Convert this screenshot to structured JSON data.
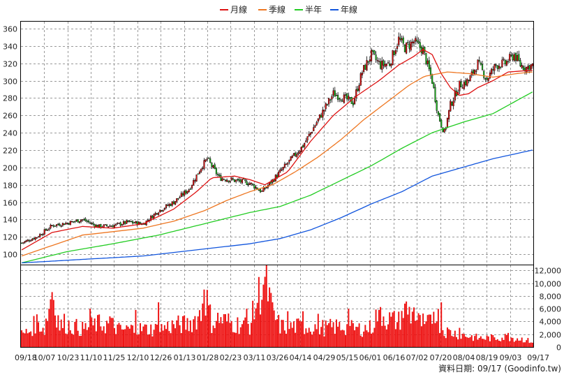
{
  "chart_data": [
    {
      "type": "candlestick",
      "legend": [
        {
          "name": "月線",
          "color": "#dd1111"
        },
        {
          "name": "季線",
          "color": "#ee7722"
        },
        {
          "name": "半年",
          "color": "#22cc22"
        },
        {
          "name": "年線",
          "color": "#1155dd"
        }
      ],
      "legend_placement": "top-center",
      "x_tick_labels": [
        "09/18",
        "10/07",
        "10/23",
        "11/10",
        "11/25",
        "12/10",
        "12/26",
        "01/13",
        "01/28",
        "02/23",
        "03/11",
        "03/26",
        "04/14",
        "04/29",
        "05/15",
        "06/01",
        "06/16",
        "07/02",
        "07/20",
        "08/04",
        "08/19",
        "09/03",
        "09/17"
      ],
      "y_ticks": [
        100,
        120,
        140,
        160,
        180,
        200,
        220,
        240,
        260,
        280,
        300,
        320,
        340,
        360
      ],
      "ylim": [
        88,
        368
      ],
      "grid": true,
      "up_color": "#dd1111",
      "down_color": "#22bb22",
      "price_knots": [
        [
          0,
          113
        ],
        [
          10,
          120
        ],
        [
          20,
          133
        ],
        [
          30,
          136
        ],
        [
          40,
          140
        ],
        [
          50,
          132
        ],
        [
          60,
          133
        ],
        [
          70,
          137
        ],
        [
          80,
          135
        ],
        [
          90,
          150
        ],
        [
          100,
          160
        ],
        [
          110,
          175
        ],
        [
          118,
          200
        ],
        [
          122,
          210
        ],
        [
          130,
          188
        ],
        [
          140,
          185
        ],
        [
          150,
          182
        ],
        [
          158,
          172
        ],
        [
          165,
          185
        ],
        [
          175,
          205
        ],
        [
          185,
          225
        ],
        [
          195,
          255
        ],
        [
          205,
          285
        ],
        [
          212,
          280
        ],
        [
          218,
          275
        ],
        [
          224,
          310
        ],
        [
          230,
          330
        ],
        [
          236,
          318
        ],
        [
          242,
          320
        ],
        [
          248,
          348
        ],
        [
          252,
          338
        ],
        [
          258,
          345
        ],
        [
          264,
          335
        ],
        [
          270,
          300
        ],
        [
          274,
          260
        ],
        [
          278,
          240
        ],
        [
          282,
          272
        ],
        [
          288,
          295
        ],
        [
          294,
          300
        ],
        [
          300,
          320
        ],
        [
          306,
          302
        ],
        [
          312,
          318
        ],
        [
          318,
          320
        ],
        [
          324,
          330
        ],
        [
          328,
          318
        ],
        [
          332,
          315
        ],
        [
          336,
          318
        ]
      ],
      "series": [
        {
          "name": "月線",
          "knots": [
            [
              0,
              105
            ],
            [
              20,
              125
            ],
            [
              40,
              132
            ],
            [
              60,
              130
            ],
            [
              80,
              135
            ],
            [
              100,
              152
            ],
            [
              115,
              172
            ],
            [
              125,
              188
            ],
            [
              140,
              190
            ],
            [
              150,
              186
            ],
            [
              160,
              180
            ],
            [
              175,
              195
            ],
            [
              190,
              230
            ],
            [
              205,
              260
            ],
            [
              220,
              282
            ],
            [
              235,
              300
            ],
            [
              248,
              318
            ],
            [
              258,
              328
            ],
            [
              264,
              336
            ],
            [
              270,
              330
            ],
            [
              276,
              308
            ],
            [
              282,
              292
            ],
            [
              288,
              283
            ],
            [
              294,
              285
            ],
            [
              300,
              292
            ],
            [
              310,
              300
            ],
            [
              320,
              310
            ],
            [
              336,
              312
            ]
          ]
        },
        {
          "name": "季線",
          "knots": [
            [
              0,
              98
            ],
            [
              20,
              110
            ],
            [
              40,
              122
            ],
            [
              60,
              126
            ],
            [
              80,
              130
            ],
            [
              100,
              138
            ],
            [
              120,
              150
            ],
            [
              135,
              162
            ],
            [
              150,
              172
            ],
            [
              165,
              180
            ],
            [
              180,
              195
            ],
            [
              195,
              212
            ],
            [
              210,
              232
            ],
            [
              225,
              255
            ],
            [
              240,
              275
            ],
            [
              255,
              295
            ],
            [
              265,
              305
            ],
            [
              280,
              310
            ],
            [
              295,
              308
            ],
            [
              310,
              304
            ],
            [
              325,
              308
            ],
            [
              336,
              310
            ]
          ]
        },
        {
          "name": "半年",
          "knots": [
            [
              0,
              90
            ],
            [
              30,
              103
            ],
            [
              60,
              112
            ],
            [
              90,
              122
            ],
            [
              120,
              135
            ],
            [
              150,
              148
            ],
            [
              170,
              155
            ],
            [
              190,
              168
            ],
            [
              210,
              185
            ],
            [
              230,
              202
            ],
            [
              250,
              222
            ],
            [
              270,
              240
            ],
            [
              290,
              252
            ],
            [
              310,
              262
            ],
            [
              336,
              287
            ]
          ]
        },
        {
          "name": "年線",
          "knots": [
            [
              0,
              90
            ],
            [
              40,
              94
            ],
            [
              80,
              98
            ],
            [
              120,
              106
            ],
            [
              150,
              112
            ],
            [
              170,
              118
            ],
            [
              190,
              128
            ],
            [
              210,
              142
            ],
            [
              230,
              158
            ],
            [
              250,
              172
            ],
            [
              270,
              190
            ],
            [
              290,
              200
            ],
            [
              310,
              210
            ],
            [
              336,
              220
            ]
          ]
        }
      ]
    },
    {
      "type": "bar",
      "series_name": "volume",
      "color": "#ee1111",
      "y_ticks": [
        0,
        2000,
        4000,
        6000,
        8000,
        10000,
        12000
      ],
      "y_tick_labels": [
        "0",
        "2,000",
        "4,000",
        "6,000",
        "8,000",
        "10,000",
        "12,000"
      ],
      "ylim": [
        0,
        12800
      ],
      "volume_knots": [
        [
          0,
          2000
        ],
        [
          5,
          2400
        ],
        [
          10,
          4000
        ],
        [
          15,
          2800
        ],
        [
          20,
          8600
        ],
        [
          25,
          3400
        ],
        [
          30,
          3500
        ],
        [
          40,
          2800
        ],
        [
          50,
          3600
        ],
        [
          60,
          3400
        ],
        [
          65,
          2600
        ],
        [
          70,
          2800
        ],
        [
          80,
          2800
        ],
        [
          90,
          2800
        ],
        [
          100,
          3400
        ],
        [
          110,
          3600
        ],
        [
          118,
          5200
        ],
        [
          120,
          9000
        ],
        [
          125,
          3800
        ],
        [
          130,
          4400
        ],
        [
          140,
          3600
        ],
        [
          150,
          3400
        ],
        [
          155,
          7400
        ],
        [
          160,
          11000
        ],
        [
          165,
          5200
        ],
        [
          170,
          3200
        ],
        [
          175,
          3200
        ],
        [
          180,
          3200
        ],
        [
          185,
          3200
        ],
        [
          190,
          3200
        ],
        [
          200,
          3000
        ],
        [
          210,
          3200
        ],
        [
          220,
          2800
        ],
        [
          230,
          3000
        ],
        [
          235,
          5800
        ],
        [
          240,
          4400
        ],
        [
          248,
          4000
        ],
        [
          252,
          6200
        ],
        [
          258,
          4600
        ],
        [
          262,
          3800
        ],
        [
          268,
          3600
        ],
        [
          272,
          6400
        ],
        [
          276,
          2800
        ],
        [
          280,
          2400
        ],
        [
          288,
          2000
        ],
        [
          296,
          1600
        ],
        [
          300,
          1400
        ],
        [
          310,
          1400
        ],
        [
          320,
          1600
        ],
        [
          330,
          1200
        ],
        [
          336,
          800
        ]
      ],
      "volume_spikes": [
        [
          20,
          8600
        ],
        [
          28,
          5200
        ],
        [
          45,
          6000
        ],
        [
          58,
          4800
        ],
        [
          75,
          5800
        ],
        [
          90,
          7000
        ],
        [
          120,
          9000
        ],
        [
          148,
          6000
        ],
        [
          158,
          7400
        ],
        [
          160,
          11000
        ],
        [
          175,
          5600
        ],
        [
          185,
          5600
        ],
        [
          195,
          5200
        ],
        [
          215,
          6000
        ],
        [
          235,
          5800
        ],
        [
          252,
          6800
        ],
        [
          258,
          6200
        ],
        [
          265,
          3600
        ],
        [
          276,
          7000
        ],
        [
          288,
          3000
        ],
        [
          320,
          2200
        ]
      ]
    }
  ],
  "footer": "資料日期: 09/17 (Goodinfo.tw)"
}
